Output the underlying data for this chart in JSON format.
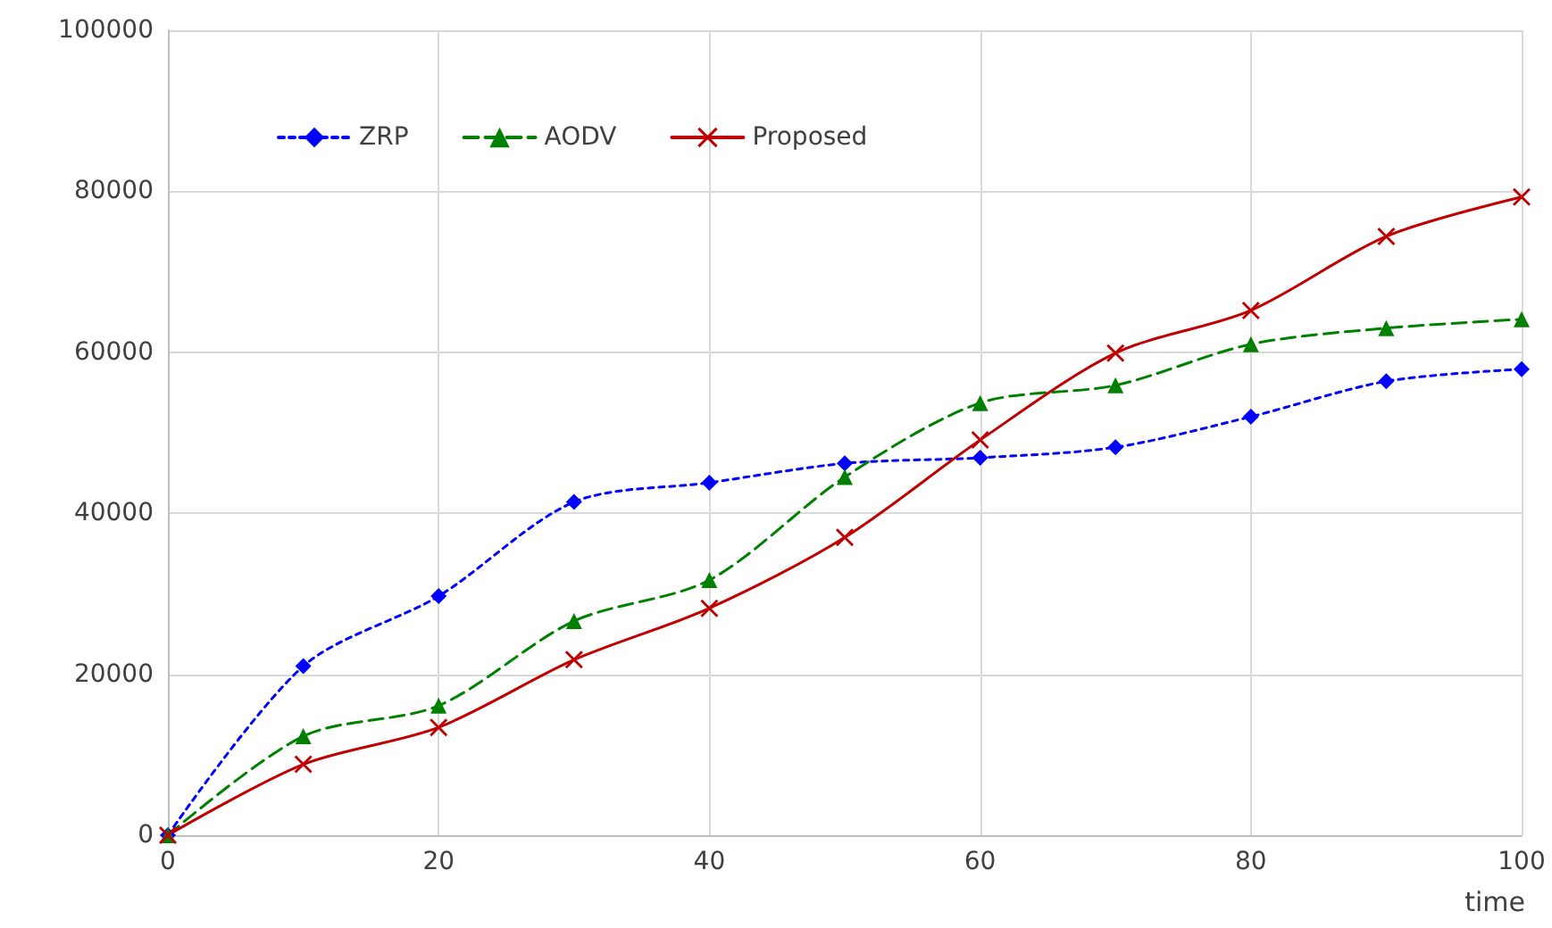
{
  "chart_data": {
    "type": "line",
    "xlabel": "time",
    "x": [
      0,
      10,
      20,
      30,
      40,
      50,
      60,
      70,
      80,
      90,
      100
    ],
    "series": [
      {
        "name": "ZRP",
        "color": "#0000ff",
        "marker": "diamond",
        "line_style": "dotted",
        "values": [
          0,
          21000,
          29700,
          41400,
          43800,
          46200,
          46900,
          48200,
          52000,
          56400,
          57900
        ]
      },
      {
        "name": "AODV",
        "color": "#008000",
        "marker": "triangle",
        "line_style": "dashed",
        "values": [
          0,
          12300,
          16100,
          26600,
          31700,
          44500,
          53700,
          55900,
          61000,
          63000,
          64100
        ]
      },
      {
        "name": "Proposed",
        "color": "#c00000",
        "marker": "cross",
        "line_style": "solid",
        "values": [
          0,
          8800,
          13400,
          21800,
          28200,
          37000,
          49100,
          59900,
          65200,
          74400,
          79300
        ]
      }
    ],
    "xlim": [
      0,
      100
    ],
    "xticks": [
      0,
      20,
      40,
      60,
      80,
      100
    ],
    "ylim": [
      0,
      100000
    ],
    "yticks": [
      0,
      20000,
      40000,
      60000,
      80000,
      100000
    ],
    "grid": true,
    "legend": "top left"
  }
}
